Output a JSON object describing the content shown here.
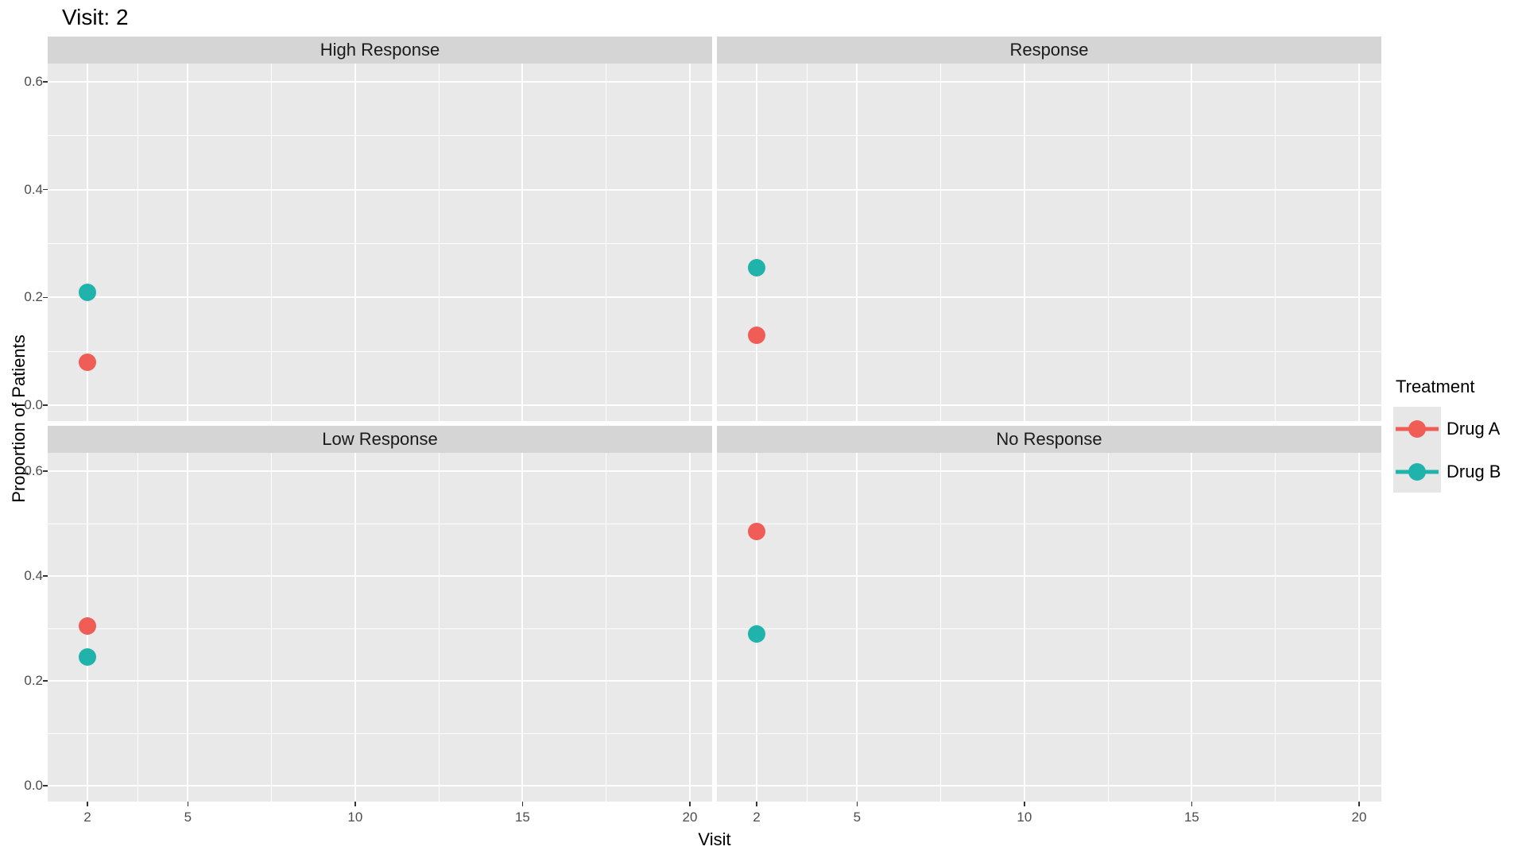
{
  "title": "Visit: 2",
  "y_axis": {
    "title": "Proportion of Patients",
    "tick_labels": [
      "0.0",
      "0.2",
      "0.4",
      "0.6"
    ]
  },
  "x_axis": {
    "title": "Visit",
    "tick_labels": [
      "2",
      "5",
      "10",
      "15",
      "20"
    ]
  },
  "legend": {
    "title": "Treatment",
    "entries": [
      {
        "label": "Drug A",
        "color": "#EF5D56"
      },
      {
        "label": "Drug B",
        "color": "#1FB3AC"
      }
    ]
  },
  "chart_data": {
    "type": "scatter",
    "title": "Visit: 2",
    "xlabel": "Visit",
    "ylabel": "Proportion of Patients",
    "x_range": [
      2,
      20
    ],
    "y_range": [
      0,
      0.6
    ],
    "x_ticks": [
      2,
      5,
      10,
      15,
      20
    ],
    "x_minor_ticks": [
      3.5,
      7.5,
      12.5,
      17.5
    ],
    "y_ticks": [
      0,
      0.2,
      0.4,
      0.6
    ],
    "y_minor_ticks": [
      0.1,
      0.3,
      0.5
    ],
    "grid": "major-and-minor-white-on-gray",
    "legend_position": "right",
    "facet_layout": "2x2",
    "series": [
      {
        "name": "Drug A",
        "color": "#EF5D56"
      },
      {
        "name": "Drug B",
        "color": "#1FB3AC"
      }
    ],
    "facets": [
      {
        "label": "High Response",
        "points": [
          {
            "series": "Drug A",
            "x": 2,
            "y": 0.08
          },
          {
            "series": "Drug B",
            "x": 2,
            "y": 0.21
          }
        ]
      },
      {
        "label": "Response",
        "points": [
          {
            "series": "Drug A",
            "x": 2,
            "y": 0.13
          },
          {
            "series": "Drug B",
            "x": 2,
            "y": 0.255
          }
        ]
      },
      {
        "label": "Low Response",
        "points": [
          {
            "series": "Drug A",
            "x": 2,
            "y": 0.305
          },
          {
            "series": "Drug B",
            "x": 2,
            "y": 0.245
          }
        ]
      },
      {
        "label": "No Response",
        "points": [
          {
            "series": "Drug A",
            "x": 2,
            "y": 0.485
          },
          {
            "series": "Drug B",
            "x": 2,
            "y": 0.29
          }
        ]
      }
    ]
  },
  "colors": {
    "page_bg": "#FFFFFF",
    "panel_bg": "#E9E9E9",
    "strip_bg": "#D5D5D5",
    "gridline": "#FFFFFF",
    "tick_text": "#4D4D4D",
    "strip_text": "#1A1A1A",
    "legend_key_bg": "#E7E7E7"
  }
}
